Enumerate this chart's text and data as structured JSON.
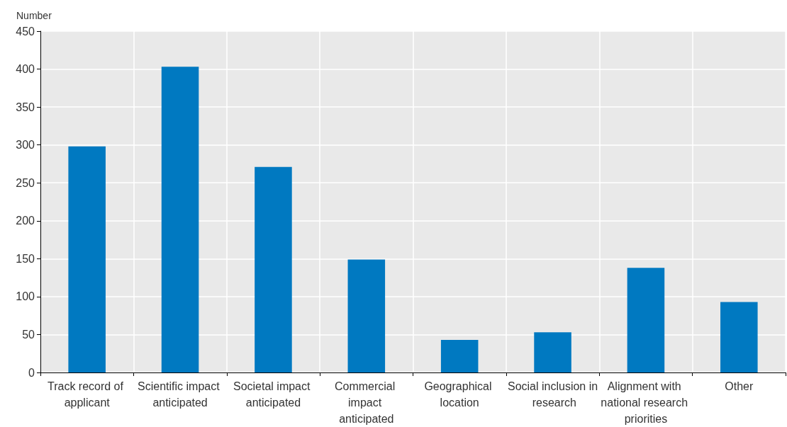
{
  "chart_data": {
    "type": "bar",
    "ylabel": "Number",
    "categories": [
      "Track record of applicant",
      "Scientific impact anticipated",
      "Societal impact anticipated",
      "Commercial impact anticipated",
      "Geographical location",
      "Social inclusion in research",
      "Alignment with national research priorities",
      "Other"
    ],
    "values": [
      298,
      403,
      271,
      149,
      43,
      53,
      138,
      93
    ],
    "color": "#0079c1",
    "ylim": [
      0,
      450
    ],
    "yticks": [
      0,
      50,
      100,
      150,
      200,
      250,
      300,
      350,
      400,
      450
    ],
    "grid": true
  }
}
